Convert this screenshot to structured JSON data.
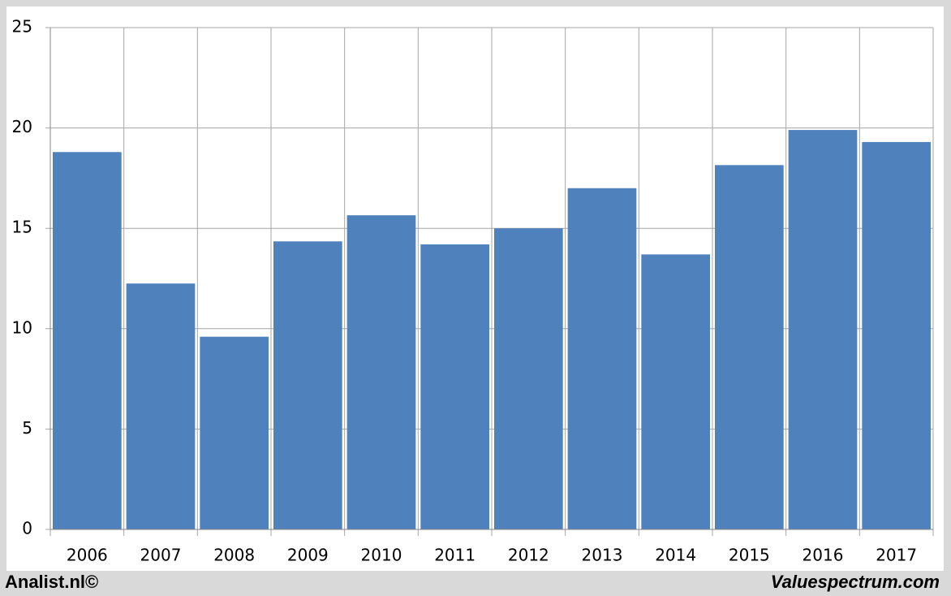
{
  "chart_data": {
    "type": "bar",
    "categories": [
      "2006",
      "2007",
      "2008",
      "2009",
      "2010",
      "2011",
      "2012",
      "2013",
      "2014",
      "2015",
      "2016",
      "2017"
    ],
    "values": [
      18.8,
      12.25,
      9.6,
      14.35,
      15.65,
      14.2,
      15.0,
      17.0,
      13.7,
      18.15,
      19.9,
      19.3
    ],
    "color": "#4f81bd",
    "ylim": [
      0,
      25
    ],
    "yticks": [
      0,
      5,
      10,
      15,
      20,
      25
    ],
    "grid": true
  },
  "footer": {
    "left": "Analist.nl©",
    "right": "Valuespectrum.com"
  }
}
